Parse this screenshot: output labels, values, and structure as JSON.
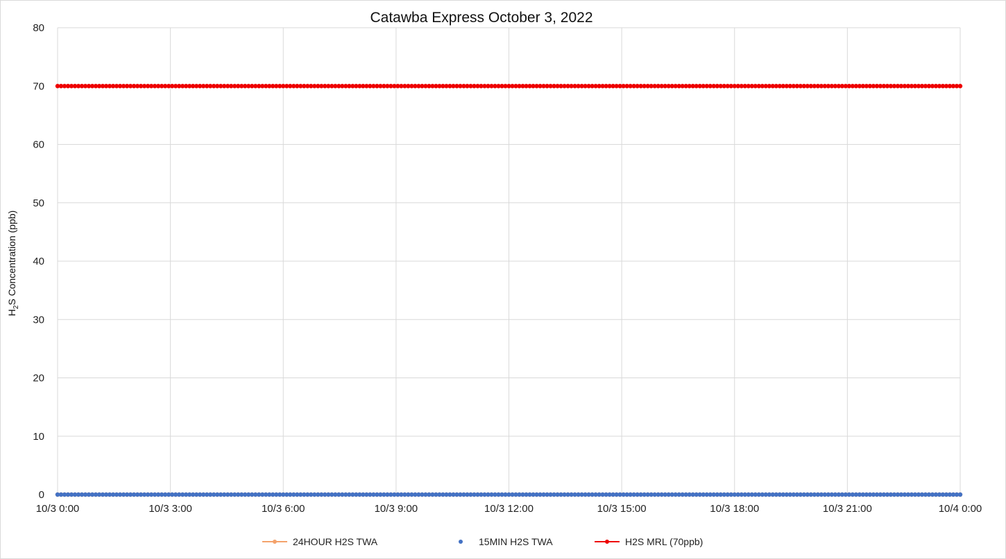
{
  "chart_data": {
    "type": "line",
    "title": "Catawba Express October 3, 2022",
    "ylabel": {
      "prefix": "H",
      "subscript": "2",
      "suffix": "S Concentration (ppb)"
    },
    "xlabel": "",
    "x_range": [
      "10/3 0:00",
      "10/4 0:00"
    ],
    "x_ticks": [
      "10/3 0:00",
      "10/3 3:00",
      "10/3 6:00",
      "10/3 9:00",
      "10/3 12:00",
      "10/3 15:00",
      "10/3 18:00",
      "10/3 21:00",
      "10/4 0:00"
    ],
    "ylim": [
      0,
      80
    ],
    "y_ticks": [
      "0",
      "10",
      "20",
      "30",
      "40",
      "50",
      "60",
      "70",
      "80"
    ],
    "grid": true,
    "legend_position": "bottom",
    "series": [
      {
        "name": "24HOUR H2S TWA",
        "color": "#f4a26b",
        "style": "line-marker",
        "x": [
          "10/3 0:00",
          "10/4 0:00"
        ],
        "y": [
          0,
          0
        ]
      },
      {
        "name": "15MIN H2S TWA",
        "color": "#4472c4",
        "style": "marker",
        "x": [
          "10/3 0:00",
          "10/4 0:00"
        ],
        "y": [
          0,
          0
        ]
      },
      {
        "name": "H2S MRL (70ppb)",
        "color": "#ee0000",
        "style": "line-marker",
        "x": [
          "10/3 0:00",
          "10/4 0:00"
        ],
        "y": [
          70,
          70
        ]
      }
    ]
  }
}
